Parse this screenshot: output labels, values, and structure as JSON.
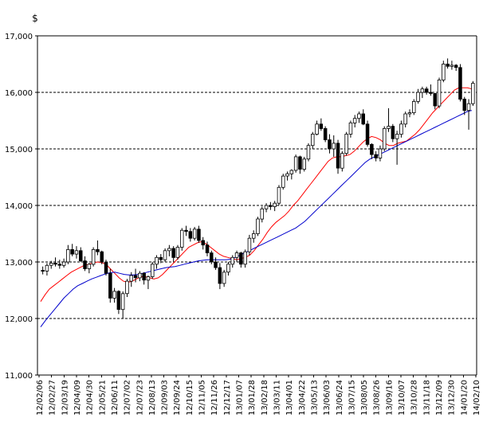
{
  "chart_data": {
    "type": "candlestick",
    "y_unit": "$",
    "ylim": [
      11000,
      17000
    ],
    "y_ticks": [
      11000,
      12000,
      13000,
      14000,
      15000,
      16000,
      17000
    ],
    "y_tick_labels": [
      "11,000",
      "12,000",
      "13,000",
      "14,000",
      "15,000",
      "16,000",
      "17,000"
    ],
    "grid": {
      "horizontal": "dashed",
      "vertical": false
    },
    "x_tick_labels": [
      "12/02/06",
      "12/02/27",
      "12/03/19",
      "12/04/09",
      "12/04/30",
      "12/05/21",
      "12/06/11",
      "12/07/02",
      "12/07/23",
      "12/08/13",
      "12/09/03",
      "12/09/24",
      "12/10/15",
      "12/11/05",
      "12/11/26",
      "12/12/17",
      "13/01/07",
      "13/01/28",
      "13/02/18",
      "13/03/11",
      "13/04/01",
      "13/04/22",
      "13/05/13",
      "13/06/03",
      "13/06/24",
      "13/07/15",
      "13/08/05",
      "13/08/26",
      "13/09/16",
      "13/10/07",
      "13/10/28",
      "13/11/18",
      "13/12/09",
      "13/12/30",
      "14/01/20",
      "14/02/10"
    ],
    "candles": [
      [
        12850,
        12920,
        12780,
        12840
      ],
      [
        12840,
        12980,
        12760,
        12940
      ],
      [
        12940,
        13020,
        12880,
        12980
      ],
      [
        12980,
        13080,
        12920,
        12960
      ],
      [
        12960,
        13040,
        12880,
        12940
      ],
      [
        12940,
        13060,
        12900,
        13000
      ],
      [
        13000,
        13300,
        12960,
        13220
      ],
      [
        13220,
        13320,
        13100,
        13140
      ],
      [
        13140,
        13280,
        13060,
        13200
      ],
      [
        13200,
        13260,
        13000,
        13020
      ],
      [
        13020,
        13100,
        12840,
        12880
      ],
      [
        12880,
        12980,
        12800,
        12960
      ],
      [
        12960,
        13260,
        12920,
        13220
      ],
      [
        13220,
        13380,
        13120,
        13180
      ],
      [
        13180,
        13200,
        12960,
        13000
      ],
      [
        13000,
        13040,
        12760,
        12800
      ],
      [
        12800,
        12880,
        12280,
        12360
      ],
      [
        12360,
        12540,
        12280,
        12480
      ],
      [
        12480,
        12500,
        12080,
        12160
      ],
      [
        12160,
        12480,
        12000,
        12440
      ],
      [
        12440,
        12700,
        12380,
        12660
      ],
      [
        12660,
        12820,
        12560,
        12760
      ],
      [
        12760,
        12880,
        12640,
        12720
      ],
      [
        12720,
        12840,
        12660,
        12800
      ],
      [
        12800,
        12820,
        12600,
        12680
      ],
      [
        12680,
        12760,
        12520,
        12740
      ],
      [
        12740,
        13000,
        12700,
        12960
      ],
      [
        12960,
        13120,
        12880,
        13080
      ],
      [
        13080,
        13140,
        12980,
        13040
      ],
      [
        13040,
        13240,
        13000,
        13200
      ],
      [
        13200,
        13300,
        13100,
        13240
      ],
      [
        13240,
        13280,
        13000,
        13080
      ],
      [
        13080,
        13300,
        13040,
        13260
      ],
      [
        13260,
        13600,
        13200,
        13560
      ],
      [
        13560,
        13640,
        13460,
        13540
      ],
      [
        13540,
        13600,
        13360,
        13420
      ],
      [
        13420,
        13620,
        13380,
        13580
      ],
      [
        13580,
        13640,
        13340,
        13380
      ],
      [
        13380,
        13440,
        13220,
        13300
      ],
      [
        13300,
        13360,
        13100,
        13160
      ],
      [
        13160,
        13200,
        12960,
        13000
      ],
      [
        13000,
        13080,
        12860,
        12900
      ],
      [
        12900,
        12980,
        12520,
        12620
      ],
      [
        12620,
        12860,
        12560,
        12820
      ],
      [
        12820,
        13000,
        12760,
        12960
      ],
      [
        12960,
        13120,
        12900,
        13080
      ],
      [
        13080,
        13200,
        13000,
        13160
      ],
      [
        13160,
        13180,
        12900,
        12960
      ],
      [
        12960,
        13220,
        12900,
        13180
      ],
      [
        13180,
        13480,
        13120,
        13420
      ],
      [
        13420,
        13560,
        13340,
        13500
      ],
      [
        13500,
        13800,
        13460,
        13760
      ],
      [
        13760,
        13980,
        13700,
        13940
      ],
      [
        13940,
        14040,
        13880,
        14000
      ],
      [
        14000,
        14060,
        13920,
        13980
      ],
      [
        13980,
        14080,
        13900,
        14040
      ],
      [
        14040,
        14360,
        14000,
        14320
      ],
      [
        14320,
        14560,
        14280,
        14520
      ],
      [
        14520,
        14600,
        14440,
        14560
      ],
      [
        14560,
        14640,
        14460,
        14620
      ],
      [
        14620,
        14900,
        14580,
        14860
      ],
      [
        14860,
        14880,
        14560,
        14640
      ],
      [
        14640,
        14860,
        14600,
        14820
      ],
      [
        14820,
        15100,
        14780,
        15060
      ],
      [
        15060,
        15300,
        15000,
        15260
      ],
      [
        15260,
        15500,
        15240,
        15440
      ],
      [
        15440,
        15540,
        15320,
        15360
      ],
      [
        15360,
        15400,
        15120,
        15160
      ],
      [
        15160,
        15260,
        14920,
        15000
      ],
      [
        15000,
        15240,
        14860,
        15100
      ],
      [
        15100,
        15160,
        14560,
        14660
      ],
      [
        14660,
        14960,
        14600,
        14920
      ],
      [
        14920,
        15300,
        14880,
        15260
      ],
      [
        15260,
        15500,
        15200,
        15460
      ],
      [
        15460,
        15600,
        15380,
        15540
      ],
      [
        15540,
        15660,
        15460,
        15620
      ],
      [
        15620,
        15700,
        15420,
        15440
      ],
      [
        15440,
        15500,
        15040,
        15080
      ],
      [
        15080,
        15100,
        14820,
        14900
      ],
      [
        14900,
        14960,
        14780,
        14840
      ],
      [
        14840,
        15060,
        14780,
        15000
      ],
      [
        15000,
        15400,
        14960,
        15360
      ],
      [
        15360,
        15720,
        15300,
        15400
      ],
      [
        15400,
        15440,
        15120,
        15180
      ],
      [
        15180,
        15320,
        14720,
        15260
      ],
      [
        15260,
        15500,
        15200,
        15440
      ],
      [
        15440,
        15660,
        15380,
        15620
      ],
      [
        15620,
        15700,
        15560,
        15640
      ],
      [
        15640,
        15880,
        15600,
        15840
      ],
      [
        15840,
        16060,
        15800,
        16000
      ],
      [
        16000,
        16100,
        15900,
        16060
      ],
      [
        16060,
        16100,
        15960,
        16000
      ],
      [
        16000,
        16140,
        15940,
        15980
      ],
      [
        15980,
        15980,
        15700,
        15760
      ],
      [
        15760,
        16260,
        15720,
        16220
      ],
      [
        16220,
        16560,
        16180,
        16500
      ],
      [
        16500,
        16600,
        16420,
        16460
      ],
      [
        16460,
        16560,
        16400,
        16480
      ],
      [
        16480,
        16500,
        16380,
        16440
      ],
      [
        16440,
        16500,
        15840,
        15880
      ],
      [
        15880,
        15920,
        15600,
        15680
      ],
      [
        15680,
        15880,
        15340,
        15800
      ],
      [
        15800,
        16200,
        15760,
        16160
      ]
    ],
    "ma_short": [
      12300,
      12420,
      12520,
      12580,
      12640,
      12700,
      12760,
      12820,
      12860,
      12900,
      12940,
      12960,
      12980,
      13000,
      12990,
      12960,
      12880,
      12800,
      12720,
      12660,
      12640,
      12660,
      12700,
      12740,
      12740,
      12720,
      12700,
      12720,
      12780,
      12860,
      12940,
      13020,
      13100,
      13180,
      13260,
      13300,
      13340,
      13360,
      13320,
      13260,
      13200,
      13140,
      13100,
      13080,
      13060,
      13040,
      13060,
      13080,
      13120,
      13200,
      13300,
      13400,
      13520,
      13620,
      13700,
      13760,
      13820,
      13900,
      14000,
      14080,
      14180,
      14280,
      14380,
      14480,
      14580,
      14680,
      14780,
      14840,
      14860,
      14860,
      14880,
      14900,
      14960,
      15040,
      15120,
      15180,
      15220,
      15200,
      15160,
      15100,
      15060,
      15060,
      15100,
      15120,
      15140,
      15200,
      15260,
      15340,
      15440,
      15540,
      15640,
      15720,
      15800,
      15880,
      15960,
      16040,
      16080,
      16080,
      16080,
      16060
    ],
    "ma_long": [
      11850,
      11960,
      12060,
      12160,
      12260,
      12360,
      12440,
      12520,
      12580,
      12620,
      12660,
      12700,
      12730,
      12760,
      12790,
      12810,
      12820,
      12800,
      12780,
      12770,
      12770,
      12780,
      12800,
      12820,
      12840,
      12860,
      12880,
      12900,
      12910,
      12920,
      12940,
      12960,
      12980,
      13000,
      13020,
      13030,
      13040,
      13040,
      13040,
      13040,
      13040,
      13050,
      13080,
      13120,
      13160,
      13200,
      13240,
      13280,
      13320,
      13360,
      13400,
      13440,
      13480,
      13520,
      13560,
      13600,
      13660,
      13720,
      13800,
      13880,
      13960,
      14040,
      14120,
      14200,
      14280,
      14360,
      14440,
      14520,
      14600,
      14680,
      14760,
      14820,
      14860,
      14900,
      14940,
      14980,
      15020,
      15060,
      15100,
      15140,
      15180,
      15220,
      15260,
      15300,
      15340,
      15380,
      15420,
      15460,
      15500,
      15540,
      15580,
      15620,
      15660,
      15680
    ]
  }
}
